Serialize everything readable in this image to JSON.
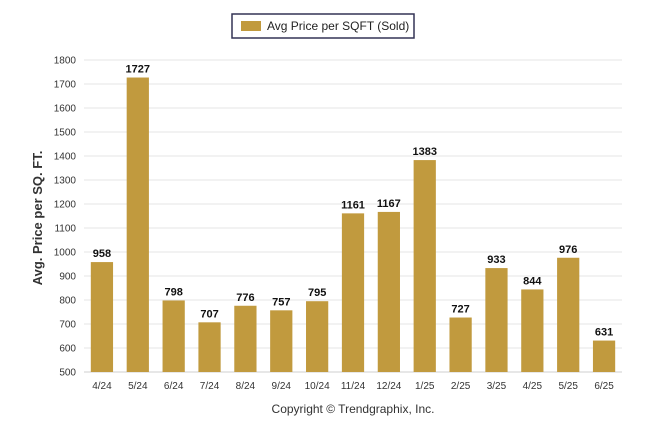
{
  "chart_data": {
    "type": "bar",
    "categories": [
      "4/24",
      "5/24",
      "6/24",
      "7/24",
      "8/24",
      "9/24",
      "10/24",
      "11/24",
      "12/24",
      "1/25",
      "2/25",
      "3/25",
      "4/25",
      "5/25",
      "6/25"
    ],
    "series": [
      {
        "name": "Avg Price per SQFT (Sold)",
        "values": [
          958,
          1727,
          798,
          707,
          776,
          757,
          795,
          1161,
          1167,
          1383,
          727,
          933,
          844,
          976,
          631
        ],
        "color": "#c19a3e"
      }
    ],
    "ylabel": "Avg. Price per SQ. FT.",
    "xlabel": "",
    "ylim": [
      500,
      1800
    ],
    "yticks": [
      500,
      600,
      700,
      800,
      900,
      1000,
      1100,
      1200,
      1300,
      1400,
      1500,
      1600,
      1700,
      1800
    ],
    "grid": true,
    "legend_position": "top-center",
    "data_labels": true
  },
  "footer": {
    "copyright": "Copyright © Trendgraphix, Inc."
  }
}
